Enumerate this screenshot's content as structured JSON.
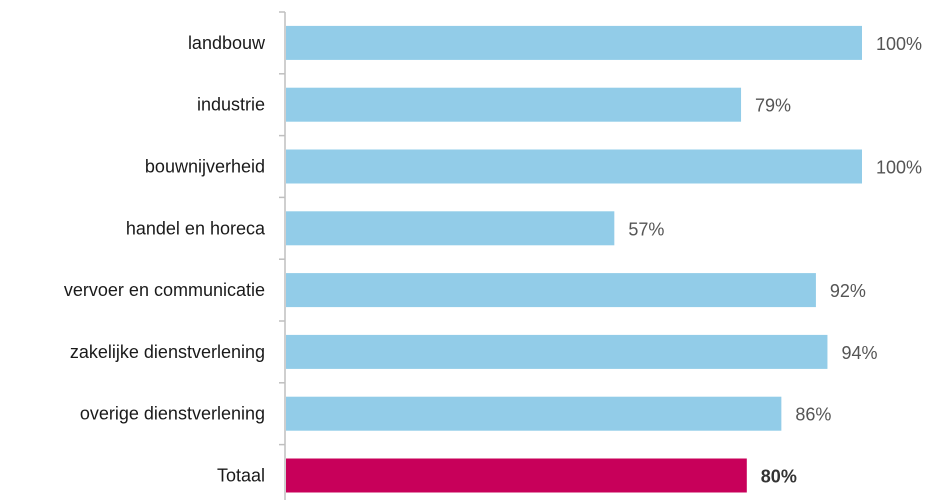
{
  "chart_data": {
    "type": "bar",
    "orientation": "horizontal",
    "categories": [
      "landbouw",
      "industrie",
      "bouwnijverheid",
      "handel en horeca",
      "vervoer en communicatie",
      "zakelijke dienstverlening",
      "overige dienstverlening",
      "Totaal"
    ],
    "values": [
      100,
      79,
      100,
      57,
      92,
      94,
      86,
      80
    ],
    "value_labels": [
      "100%",
      "79%",
      "100%",
      "57%",
      "92%",
      "94%",
      "86%",
      "80%"
    ],
    "highlight_index": 7,
    "xlim": [
      0,
      100
    ],
    "grid": false,
    "legend": "none",
    "colors": {
      "bar": "#92CCE8",
      "highlight": "#C8005A",
      "axis": "#bfbfbf"
    }
  }
}
